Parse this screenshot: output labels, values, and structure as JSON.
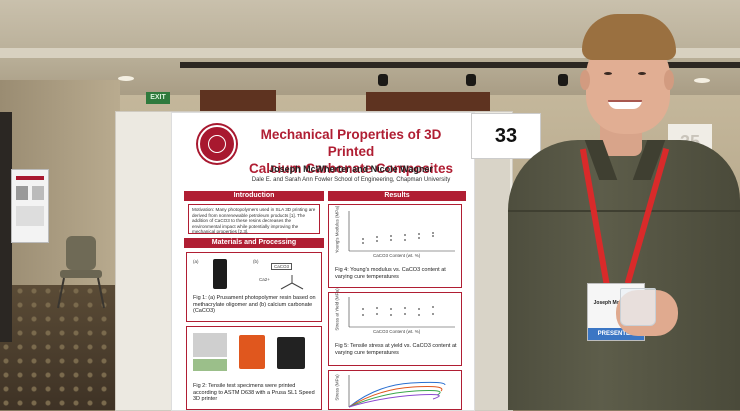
{
  "poster": {
    "title_line1": "Mechanical Properties of 3D Printed",
    "title_line2": "Calcium Carbonate Composites",
    "authors": "Joseph McWherter and Nicole Wagner",
    "affiliation": "Dale E. and Sarah Ann Fowler School of Engineering, Chapman University",
    "sections": {
      "introduction": "Introduction",
      "results": "Results",
      "materials": "Materials and Processing"
    },
    "intro_text": "Motivation: Many photopolymers used in SLA 3D printing are derived from nonrenewable petroleum products [1]. The addition of CaCO3 to these resins decreases the environmental impact while potentially improving the mechanical properties [2,3].",
    "panel_a": "(a)",
    "panel_b": "(b)",
    "chem_label": "CaCO3",
    "ion_label": "Ca2+",
    "fig1_caption": "Fig 1: (a) Prusament photopolymer resin based on methacrylate oligomer and (b) calcium carbonate (CaCO3)",
    "fig2_caption": "Fig 2: Tensile test specimens were printed according to ASTM D638 with a Prusa SL1 Speed 3D printer",
    "fig4_caption": "Fig 4: Young's modulus vs. CaCO3 content at varying cure temperatures",
    "fig5_caption": "Fig 5: Tensile stress at yield vs. CaCO3 content at varying cure temperatures",
    "chart_xlabel": "CaCO3 Content (wt. %)",
    "chart1_ylabel": "Young's Modulus (MPa)",
    "chart2_ylabel": "Stress at Yield (MPa)",
    "chart3_ylabel": "Stress (MPa)",
    "seal_year": "1861"
  },
  "booth_number": "33",
  "neighbor_number": "35",
  "badge": {
    "name": "Joseph McWherter",
    "band": "PRESENTER"
  },
  "exit_sign": "EXIT",
  "colors": {
    "poster_accent": "#b01e33",
    "lanyard": "#d92a2a",
    "badge_band": "#3b76c4"
  }
}
